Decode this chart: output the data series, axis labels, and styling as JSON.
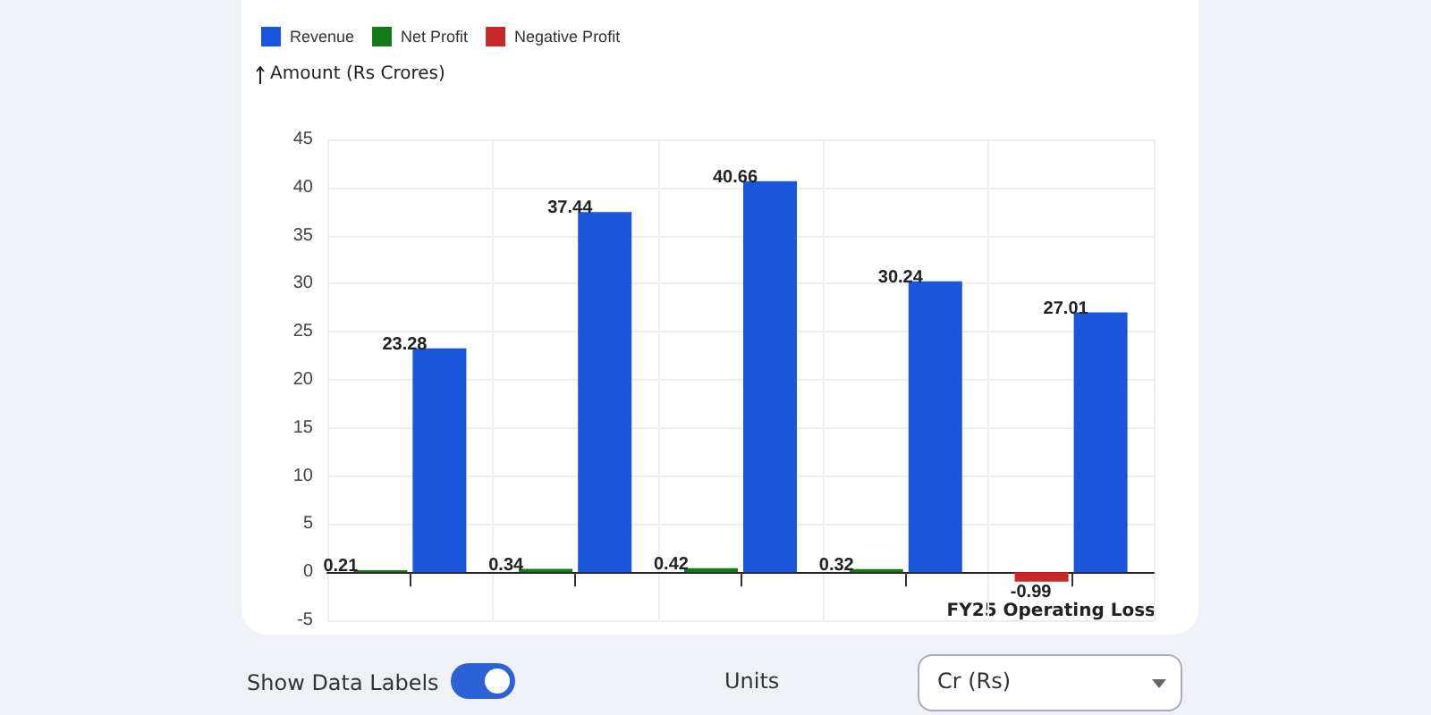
{
  "chart_data": {
    "type": "bar",
    "ylabel": "Amount (Rs Crores)",
    "categories": [
      null,
      null,
      null,
      null,
      null
    ],
    "series": [
      {
        "name": "Revenue",
        "color": "#1a56db",
        "values": [
          23.28,
          37.44,
          40.66,
          30.24,
          27.01
        ]
      },
      {
        "name": "Net Profit",
        "color": "#137a17",
        "values": [
          0.21,
          0.34,
          0.42,
          0.32,
          null
        ]
      },
      {
        "name": "Negative Profit",
        "color": "#c62828",
        "values": [
          null,
          null,
          null,
          null,
          -0.99
        ]
      }
    ],
    "ylim": [
      -5,
      45
    ],
    "yticks": [
      -5,
      0,
      5,
      10,
      15,
      20,
      25,
      30,
      35,
      40,
      45
    ],
    "grid": true,
    "legend": "top left",
    "data_labels": true,
    "annotations": [
      "FY25 Operating Loss",
      "Show Data Labels",
      "Units",
      "Cr (Rs)"
    ]
  }
}
